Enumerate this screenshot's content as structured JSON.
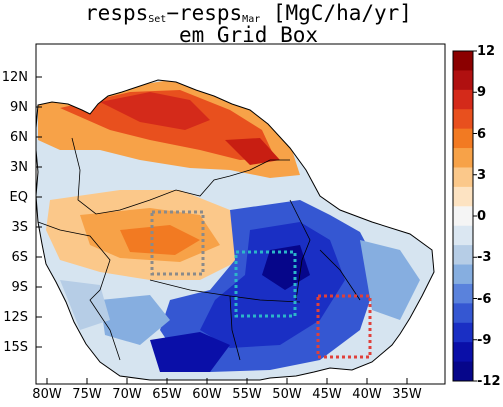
{
  "title": {
    "prefix": "resps",
    "sub1": "Set",
    "minus": "−resps",
    "sub2": "Mar",
    "units": " [MgC/ha/yr]",
    "line2": "em Grid_Box"
  },
  "lat_ticks": [
    "12N",
    "9N",
    "6N",
    "3N",
    "EQ",
    "3S",
    "6S",
    "9S",
    "12S",
    "15S"
  ],
  "lon_ticks": [
    "80W",
    "75W",
    "70W",
    "65W",
    "60W",
    "55W",
    "50W",
    "45W",
    "40W",
    "35W"
  ],
  "colorbar": {
    "ticks": [
      "12",
      "9",
      "6",
      "3",
      "0",
      "-3",
      "-6",
      "-9",
      "-12"
    ],
    "colors": [
      "#8b0000",
      "#b01010",
      "#d42a1a",
      "#e8501e",
      "#f27a22",
      "#f7a248",
      "#fbc88a",
      "#fde3c2",
      "#f5f5f5",
      "#dbe7f2",
      "#b6cde6",
      "#86aee0",
      "#5a82dc",
      "#3557d2",
      "#1a2fc4",
      "#0a0fa8",
      "#06068a"
    ]
  },
  "boxes": [
    {
      "name": "gray-box",
      "color": "#8a8a8a"
    },
    {
      "name": "cyan-box",
      "color": "#2bb7c9"
    },
    {
      "name": "red-box",
      "color": "#e0403a"
    }
  ]
}
